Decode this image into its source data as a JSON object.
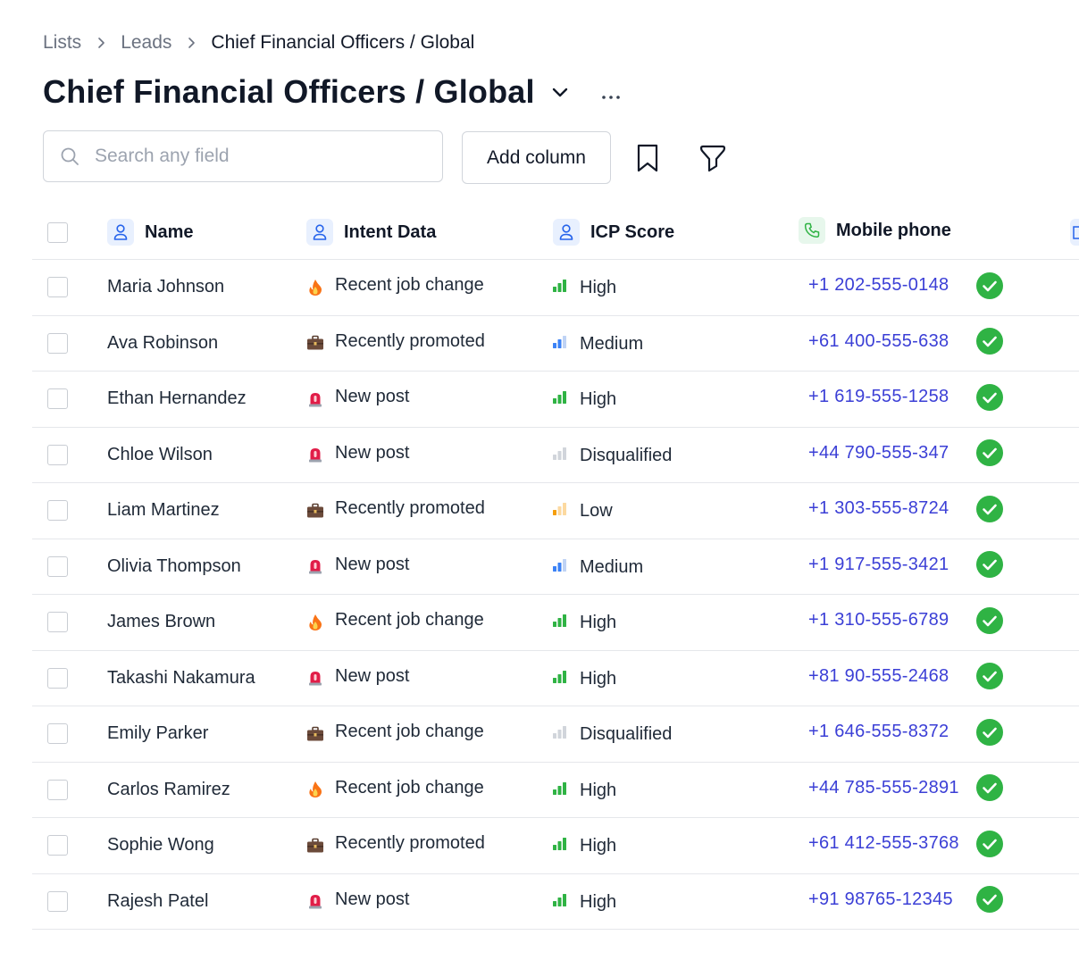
{
  "breadcrumb": [
    "Lists",
    "Leads",
    "Chief Financial Officers / Global"
  ],
  "title": "Chief Financial Officers / Global",
  "search": {
    "placeholder": "Search any field",
    "value": ""
  },
  "toolbar": {
    "add_column_label": "Add column"
  },
  "columns": [
    {
      "label": "Name",
      "icon": "person-icon"
    },
    {
      "label": "Intent Data",
      "icon": "person-icon"
    },
    {
      "label": "ICP Score",
      "icon": "person-icon"
    },
    {
      "label": "Mobile phone",
      "icon": "phone-icon"
    }
  ],
  "colors": {
    "accent_link": "#3b3fd6",
    "verified_green": "#2fb344",
    "high": "#2fb344",
    "medium": "#3b82f6",
    "low": "#f59e0b",
    "disqualified": "#d1d5db"
  },
  "rows": [
    {
      "name": "Maria Johnson",
      "intent": "Recent job change",
      "intent_icon": "fire-icon",
      "icp": "High",
      "phone": "+1 202-555-0148",
      "verified": true
    },
    {
      "name": "Ava Robinson",
      "intent": "Recently promoted",
      "intent_icon": "briefcase-icon",
      "icp": "Medium",
      "phone": "+61 400-555-638",
      "verified": true
    },
    {
      "name": "Ethan Hernandez",
      "intent": "New post",
      "intent_icon": "siren-icon",
      "icp": "High",
      "phone": "+1 619-555-1258",
      "verified": true
    },
    {
      "name": "Chloe Wilson",
      "intent": "New post",
      "intent_icon": "siren-icon",
      "icp": "Disqualified",
      "phone": "+44 790-555-347",
      "verified": true
    },
    {
      "name": "Liam Martinez",
      "intent": "Recently promoted",
      "intent_icon": "briefcase-icon",
      "icp": "Low",
      "phone": "+1 303-555-8724",
      "verified": true
    },
    {
      "name": "Olivia Thompson",
      "intent": "New post",
      "intent_icon": "siren-icon",
      "icp": "Medium",
      "phone": "+1 917-555-3421",
      "verified": true
    },
    {
      "name": "James Brown",
      "intent": "Recent job change",
      "intent_icon": "fire-icon",
      "icp": "High",
      "phone": "+1 310-555-6789",
      "verified": true
    },
    {
      "name": "Takashi Nakamura",
      "intent": "New post",
      "intent_icon": "siren-icon",
      "icp": "High",
      "phone": "+81 90-555-2468",
      "verified": true
    },
    {
      "name": "Emily Parker",
      "intent": "Recent job change",
      "intent_icon": "briefcase-icon",
      "icp": "Disqualified",
      "phone": "+1 646-555-8372",
      "verified": true
    },
    {
      "name": "Carlos Ramirez",
      "intent": "Recent job change",
      "intent_icon": "fire-icon",
      "icp": "High",
      "phone": "+44 785-555-2891",
      "verified": true
    },
    {
      "name": "Sophie Wong",
      "intent": "Recently promoted",
      "intent_icon": "briefcase-icon",
      "icp": "High",
      "phone": "+61 412-555-3768",
      "verified": true
    },
    {
      "name": "Rajesh Patel",
      "intent": "New post",
      "intent_icon": "siren-icon",
      "icp": "High",
      "phone": "+91 98765-12345",
      "verified": true
    }
  ]
}
